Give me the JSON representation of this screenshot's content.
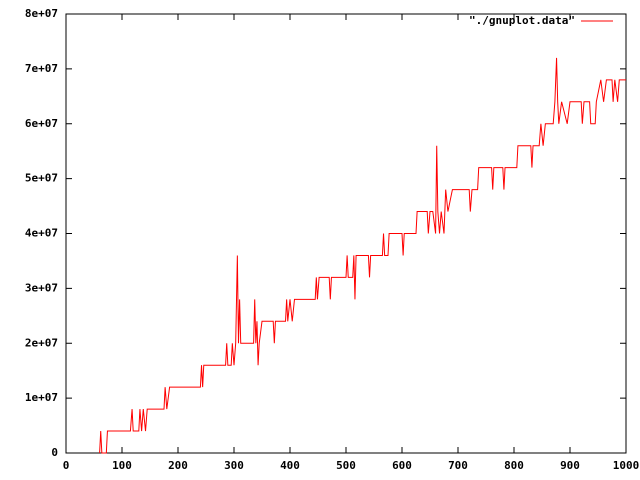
{
  "chart_data": {
    "type": "line",
    "legend": "top-right",
    "grid": false,
    "x": [
      60,
      62,
      64,
      72,
      74,
      115,
      118,
      120,
      130,
      132,
      135,
      138,
      142,
      145,
      175,
      177,
      180,
      185,
      240,
      242,
      244,
      246,
      285,
      287,
      289,
      295,
      297,
      300,
      303,
      306,
      308,
      310,
      312,
      335,
      337,
      339,
      341,
      343,
      345,
      350,
      370,
      372,
      374,
      392,
      394,
      396,
      400,
      404,
      408,
      445,
      447,
      449,
      452,
      470,
      472,
      474,
      500,
      502,
      504,
      512,
      514,
      516,
      518,
      540,
      542,
      544,
      565,
      567,
      569,
      575,
      577,
      600,
      602,
      604,
      625,
      627,
      645,
      647,
      650,
      655,
      660,
      662,
      664,
      667,
      670,
      675,
      678,
      682,
      690,
      720,
      722,
      725,
      735,
      737,
      760,
      762,
      764,
      780,
      782,
      784,
      805,
      807,
      830,
      832,
      834,
      845,
      848,
      852,
      856,
      870,
      873,
      876,
      878,
      880,
      885,
      895,
      900,
      920,
      922,
      925,
      935,
      937,
      945,
      947,
      955,
      960,
      965,
      975,
      977,
      980,
      985,
      988,
      1000
    ],
    "series": [
      {
        "name": "\"./gnuplot.data\"",
        "color": "#ff0000",
        "values": [
          0,
          4000000,
          0,
          0,
          4000000,
          4000000,
          8000000,
          4000000,
          4000000,
          8000000,
          4000000,
          8000000,
          4000000,
          8000000,
          8000000,
          12000000,
          8000000,
          12000000,
          12000000,
          16000000,
          12000000,
          16000000,
          16000000,
          20000000,
          16000000,
          16000000,
          20000000,
          16000000,
          20000000,
          36000000,
          20000000,
          28000000,
          20000000,
          20000000,
          28000000,
          20000000,
          24000000,
          16000000,
          20000000,
          24000000,
          24000000,
          20000000,
          24000000,
          24000000,
          28000000,
          24000000,
          28000000,
          24000000,
          28000000,
          28000000,
          32000000,
          28000000,
          32000000,
          32000000,
          28000000,
          32000000,
          32000000,
          36000000,
          32000000,
          32000000,
          36000000,
          28000000,
          36000000,
          36000000,
          32000000,
          36000000,
          36000000,
          40000000,
          36000000,
          36000000,
          40000000,
          40000000,
          36000000,
          40000000,
          40000000,
          44000000,
          44000000,
          40000000,
          44000000,
          44000000,
          40000000,
          56000000,
          44000000,
          40000000,
          44000000,
          40000000,
          48000000,
          44000000,
          48000000,
          48000000,
          44000000,
          48000000,
          48000000,
          52000000,
          52000000,
          48000000,
          52000000,
          52000000,
          48000000,
          52000000,
          52000000,
          56000000,
          56000000,
          52000000,
          56000000,
          56000000,
          60000000,
          56000000,
          60000000,
          60000000,
          64000000,
          72000000,
          64000000,
          60000000,
          64000000,
          60000000,
          64000000,
          64000000,
          60000000,
          64000000,
          64000000,
          60000000,
          60000000,
          64000000,
          68000000,
          64000000,
          68000000,
          68000000,
          64000000,
          68000000,
          64000000,
          68000000,
          68000000
        ]
      }
    ],
    "xlim": [
      0,
      1000
    ],
    "xticks": [
      0,
      100,
      200,
      300,
      400,
      500,
      600,
      700,
      800,
      900,
      1000
    ],
    "ylim": [
      0,
      80000000
    ],
    "yticks": [
      {
        "value": 0,
        "label": "0"
      },
      {
        "value": 10000000,
        "label": "1e+07"
      },
      {
        "value": 20000000,
        "label": "2e+07"
      },
      {
        "value": 30000000,
        "label": "3e+07"
      },
      {
        "value": 40000000,
        "label": "4e+07"
      },
      {
        "value": 50000000,
        "label": "5e+07"
      },
      {
        "value": 60000000,
        "label": "6e+07"
      },
      {
        "value": 70000000,
        "label": "7e+07"
      },
      {
        "value": 80000000,
        "label": "8e+07"
      }
    ]
  }
}
